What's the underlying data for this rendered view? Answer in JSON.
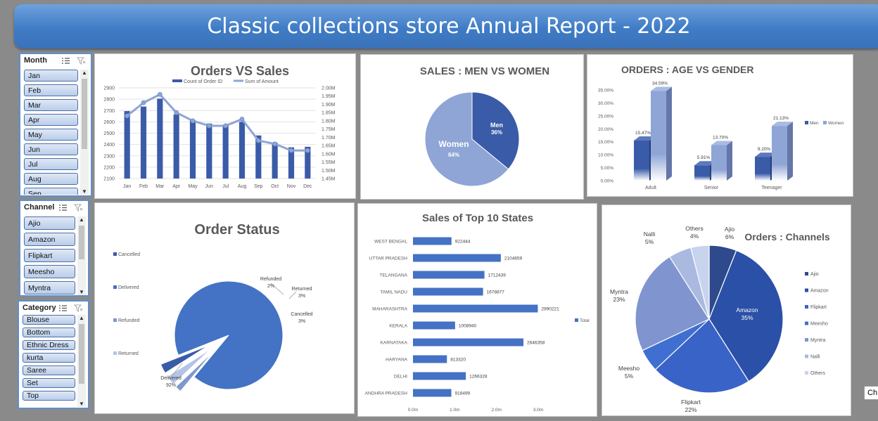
{
  "report": {
    "title": "Classic collections store Annual Report - 2022"
  },
  "slicers": {
    "month": {
      "title": "Month",
      "items": [
        "Jan",
        "Feb",
        "Mar",
        "Apr",
        "May",
        "Jun",
        "Jul",
        "Aug",
        "Sep"
      ]
    },
    "channel": {
      "title": "Channel",
      "items": [
        "Ajio",
        "Amazon",
        "Flipkart",
        "Meesho",
        "Myntra"
      ]
    },
    "category": {
      "title": "Category",
      "items": [
        "Blouse",
        "Bottom",
        "Ethnic Dress",
        "kurta",
        "Saree",
        "Set",
        "Top"
      ]
    },
    "icons": {
      "multi_select": "multi-select-icon",
      "clear_filter": "clear-filter-icon"
    }
  },
  "side_tip": "Ch",
  "colors": {
    "dark_blue": "#3a5ba8",
    "mid_blue": "#4472c4",
    "light_blue": "#8ea5d6",
    "banner": "#3f7cc6"
  },
  "chart_data": [
    {
      "id": "orders-vs-sales",
      "type": "bar+line",
      "title": "Orders VS Sales",
      "categories": [
        "Jan",
        "Feb",
        "Mar",
        "Apr",
        "May",
        "Jun",
        "Jul",
        "Aug",
        "Sep",
        "Oct",
        "Nov",
        "Dec"
      ],
      "series": [
        {
          "name": "Count of Order ID",
          "type": "bar",
          "axis": "left",
          "values": [
            2695,
            2735,
            2805,
            2665,
            2615,
            2585,
            2575,
            2600,
            2480,
            2415,
            2375,
            2380
          ]
        },
        {
          "name": "Sum of Amount",
          "type": "line",
          "axis": "right",
          "values": [
            1.83,
            1.91,
            1.96,
            1.85,
            1.8,
            1.77,
            1.77,
            1.81,
            1.68,
            1.66,
            1.62,
            1.62
          ]
        }
      ],
      "ylim_left": [
        2100,
        2900
      ],
      "yticks_left": [
        "2100",
        "2200",
        "2300",
        "2400",
        "2500",
        "2600",
        "2700",
        "2800",
        "2900"
      ],
      "ylim_right": [
        1.45,
        2.0
      ],
      "yticks_right": [
        "1.45M",
        "1.50M",
        "1.55M",
        "1.60M",
        "1.65M",
        "1.70M",
        "1.75M",
        "1.80M",
        "1.85M",
        "1.90M",
        "1.95M",
        "2.00M"
      ],
      "legend": "top",
      "grid": true
    },
    {
      "id": "sales-men-women",
      "type": "pie",
      "title": "SALES :  MEN  VS WOMEN",
      "slices": [
        {
          "label": "Men",
          "percent_label": "36%",
          "value": 36
        },
        {
          "label": "Women",
          "percent_label": "64%",
          "value": 64
        }
      ]
    },
    {
      "id": "orders-age-gender",
      "type": "bar",
      "title": "ORDERS : AGE VS GENDER",
      "categories": [
        "Adult",
        "Senior",
        "Teenager"
      ],
      "series": [
        {
          "name": "Men",
          "values": [
            15.47,
            5.91,
            9.2
          ],
          "labels": [
            "15.47%",
            "5.91%",
            "9.20%"
          ]
        },
        {
          "name": "Women",
          "values": [
            34.59,
            13.7,
            21.13
          ],
          "labels": [
            "34.59%",
            "13.70%",
            "21.13%"
          ]
        }
      ],
      "ylim": [
        0,
        35
      ],
      "yticks": [
        "0.00%",
        "5.00%",
        "10.00%",
        "15.00%",
        "20.00%",
        "25.00%",
        "30.00%",
        "35.00%"
      ],
      "legend": "right"
    },
    {
      "id": "order-status",
      "type": "pie",
      "title": "Order Status",
      "slices": [
        {
          "label": "Cancelled",
          "percent_label": "3%",
          "value": 3
        },
        {
          "label": "Delivered",
          "percent_label": "92%",
          "value": 92
        },
        {
          "label": "Refunded",
          "percent_label": "2%",
          "value": 2
        },
        {
          "label": "Returned",
          "percent_label": "3%",
          "value": 3
        }
      ],
      "legend": "left"
    },
    {
      "id": "top-10-states",
      "type": "bar",
      "orientation": "horizontal",
      "title": "Sales of Top 10 States",
      "categories": [
        "WEST BENGAL",
        "UTTAR PRADESH",
        "TELANGANA",
        "TAMIL NADU",
        "MAHARASHTRA",
        "KERALA",
        "KARNATAKA",
        "HARYANA",
        "DELHI",
        "ANDHRA PRADESH"
      ],
      "series": [
        {
          "name": "Total",
          "values": [
            922444,
            2104659,
            1712439,
            1678877,
            2990221,
            1008940,
            2646358,
            813320,
            1266328,
            918499
          ]
        }
      ],
      "xlim": [
        0,
        3000000
      ],
      "xticks": [
        "0.0m",
        "1.0m",
        "2.0m",
        "3.0m"
      ],
      "legend": "right"
    },
    {
      "id": "orders-channels",
      "type": "pie",
      "title": "Orders : Channels",
      "slices": [
        {
          "label": "Ajio",
          "percent_label": "6%",
          "value": 6
        },
        {
          "label": "Amazon",
          "percent_label": "35%",
          "value": 35
        },
        {
          "label": "Flipkart",
          "percent_label": "22%",
          "value": 22
        },
        {
          "label": "Meesho",
          "percent_label": "5%",
          "value": 5
        },
        {
          "label": "Myntra",
          "percent_label": "23%",
          "value": 23
        },
        {
          "label": "Nalli",
          "percent_label": "5%",
          "value": 5
        },
        {
          "label": "Others",
          "percent_label": "4%",
          "value": 4
        }
      ],
      "legend": "right"
    }
  ]
}
